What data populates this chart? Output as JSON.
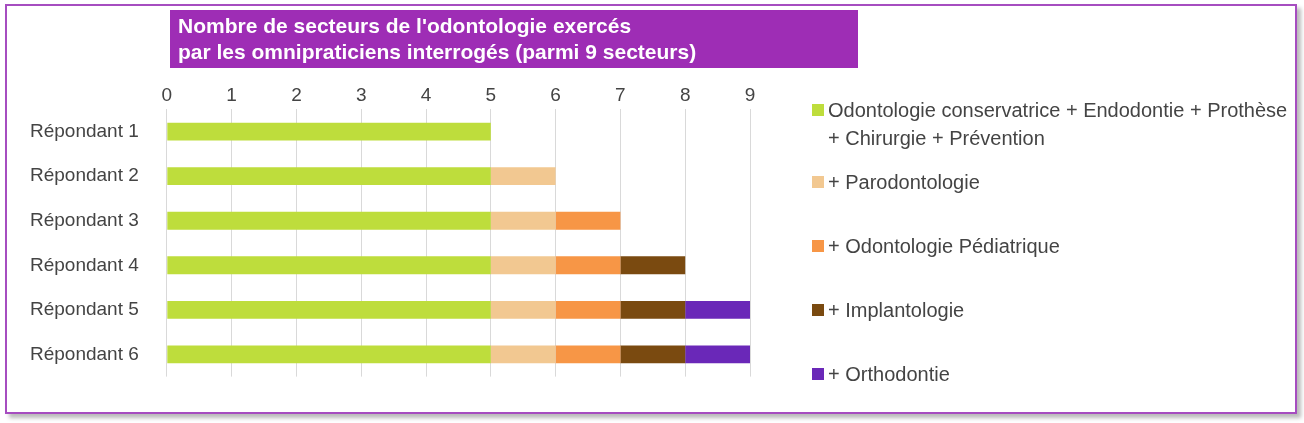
{
  "chart_data": {
    "type": "bar",
    "orientation": "horizontal",
    "stacked": true,
    "title": "Nombre de secteurs de l'odontologie exercés\npar les omnipraticiens interrogés (parmi 9 secteurs)",
    "categories": [
      "Répondant 1",
      "Répondant 2",
      "Répondant 3",
      "Répondant 4",
      "Répondant 5",
      "Répondant 6"
    ],
    "series": [
      {
        "name": "Odontologie conservatrice + Endodontie + Prothèse + Chirurgie + Prévention",
        "color": "#bedd3c",
        "values": [
          5,
          5,
          5,
          5,
          5,
          5
        ]
      },
      {
        "name": "+ Parodontologie",
        "color": "#f2c891",
        "values": [
          null,
          1,
          1,
          1,
          1,
          1
        ]
      },
      {
        "name": "+ Odontologie Pédiatrique",
        "color": "#f79646",
        "values": [
          null,
          null,
          1,
          1,
          1,
          1
        ]
      },
      {
        "name": "+ Implantologie",
        "color": "#7a4a10",
        "values": [
          null,
          null,
          null,
          1,
          1,
          1
        ]
      },
      {
        "name": "+ Orthodontie",
        "color": "#6a28b8",
        "values": [
          null,
          null,
          null,
          null,
          1,
          1
        ]
      }
    ],
    "xlim": [
      0,
      9
    ],
    "xticks": [
      0,
      1,
      2,
      3,
      4,
      5,
      6,
      7,
      8,
      9
    ],
    "grid": "x",
    "legend": "right"
  }
}
